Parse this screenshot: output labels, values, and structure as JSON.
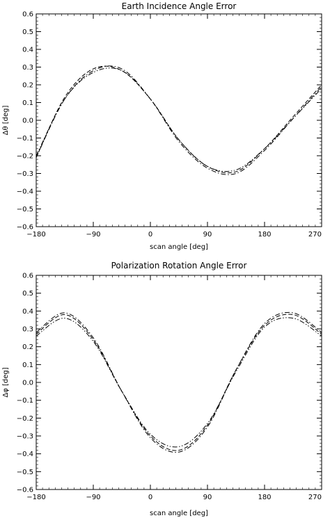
{
  "chart_data": [
    {
      "type": "line",
      "title": "Earth Incidence Angle Error",
      "xlabel": "scan angle [deg]",
      "ylabel": "Δθ [deg]",
      "xlim": [
        -180,
        270
      ],
      "ylim": [
        -0.6,
        0.6
      ],
      "xticks": [
        -180,
        -90,
        0,
        90,
        180,
        270
      ],
      "xtick_labels": [
        "−180",
        "−90",
        "0",
        "90",
        "180",
        "270"
      ],
      "yticks": [
        -0.6,
        -0.5,
        -0.4,
        -0.3,
        -0.2,
        -0.1,
        0.0,
        0.1,
        0.2,
        0.3,
        0.4,
        0.5,
        0.6
      ],
      "ytick_labels": [
        "−0.6",
        "−0.5",
        "−0.4",
        "−0.3",
        "−0.2",
        "−0.1",
        "0.0",
        "0.1",
        "0.2",
        "0.3",
        "0.4",
        "0.5",
        "0.6"
      ],
      "grid": false,
      "x": [
        -180,
        -135,
        -90,
        -45,
        0,
        45,
        90,
        135,
        180,
        225,
        270
      ],
      "series": [
        {
          "line_style": "dashed",
          "color": "#000000",
          "values": [
            -0.21,
            0.13,
            0.29,
            0.28,
            0.12,
            -0.11,
            -0.26,
            -0.29,
            -0.16,
            0.02,
            0.2
          ]
        },
        {
          "line_style": "dash-dot",
          "color": "#000000",
          "values": [
            -0.21,
            0.12,
            0.28,
            0.29,
            0.12,
            -0.12,
            -0.27,
            -0.3,
            -0.17,
            0.01,
            0.19
          ]
        },
        {
          "line_style": "dash-dot-dot",
          "color": "#000000",
          "values": [
            -0.2,
            0.12,
            0.27,
            0.28,
            0.12,
            -0.11,
            -0.26,
            -0.28,
            -0.16,
            0.01,
            0.18
          ]
        }
      ]
    },
    {
      "type": "line",
      "title": "Polarization Rotation Angle Error",
      "xlabel": "scan angle [deg]",
      "ylabel": "Δφ [deg]",
      "xlim": [
        -180,
        270
      ],
      "ylim": [
        -0.6,
        0.6
      ],
      "xticks": [
        -180,
        -90,
        0,
        90,
        180,
        270
      ],
      "xtick_labels": [
        "−180",
        "−90",
        "0",
        "90",
        "180",
        "270"
      ],
      "yticks": [
        -0.6,
        -0.5,
        -0.4,
        -0.3,
        -0.2,
        -0.1,
        0.0,
        0.1,
        0.2,
        0.3,
        0.4,
        0.5,
        0.6
      ],
      "ytick_labels": [
        "−0.6",
        "−0.5",
        "−0.4",
        "−0.3",
        "−0.2",
        "−0.1",
        "0.0",
        "0.1",
        "0.2",
        "0.3",
        "0.4",
        "0.5",
        "0.6"
      ],
      "grid": false,
      "x": [
        -180,
        -135,
        -90,
        -45,
        0,
        45,
        90,
        135,
        180,
        225,
        270
      ],
      "series": [
        {
          "line_style": "dashed",
          "color": "#000000",
          "values": [
            0.27,
            0.38,
            0.24,
            -0.05,
            -0.3,
            -0.38,
            -0.24,
            0.07,
            0.32,
            0.38,
            0.27
          ]
        },
        {
          "line_style": "dash-dot",
          "color": "#000000",
          "values": [
            0.28,
            0.39,
            0.25,
            -0.05,
            -0.31,
            -0.39,
            -0.25,
            0.07,
            0.33,
            0.39,
            0.28
          ]
        },
        {
          "line_style": "dash-dot-dot",
          "color": "#000000",
          "values": [
            0.26,
            0.36,
            0.23,
            -0.05,
            -0.29,
            -0.36,
            -0.23,
            0.06,
            0.31,
            0.36,
            0.26
          ]
        }
      ]
    }
  ]
}
